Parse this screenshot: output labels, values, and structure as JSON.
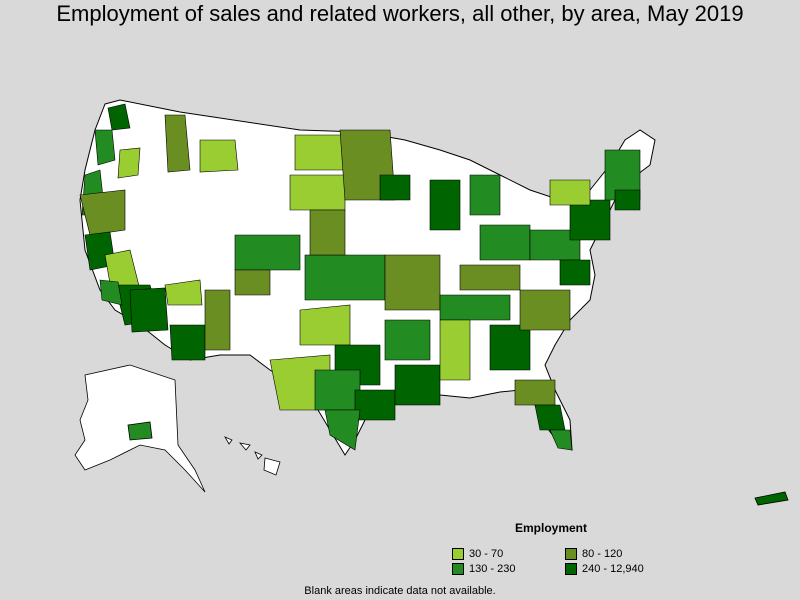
{
  "title": "Employment of sales and related workers, all other, by area, May 2019",
  "legend": {
    "title": "Employment",
    "items": [
      {
        "label": "30 - 70",
        "color": "#9acd32"
      },
      {
        "label": "80 - 120",
        "color": "#6b8e23"
      },
      {
        "label": "130 - 230",
        "color": "#228b22"
      },
      {
        "label": "240 - 12,940",
        "color": "#006400"
      }
    ]
  },
  "note": "Blank areas indicate data not available.",
  "colors": {
    "background": "#d9d9d9",
    "blank": "#ffffff",
    "border": "#000000"
  }
}
